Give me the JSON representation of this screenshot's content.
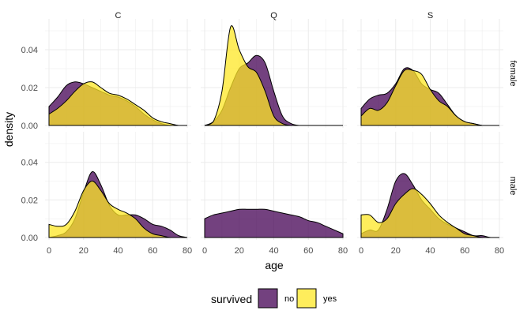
{
  "chart_data": {
    "type": "area",
    "xlabel": "age",
    "ylabel": "density",
    "xlim": [
      0,
      80
    ],
    "ylim": [
      0,
      0.055
    ],
    "x_ticks": [
      0,
      20,
      40,
      60,
      80
    ],
    "y_ticks": [
      0.0,
      0.02,
      0.04
    ],
    "y_tick_labels": [
      "0.00",
      "0.02",
      "0.04"
    ],
    "grid": true,
    "legend": {
      "title": "survived",
      "position": "bottom",
      "entries": [
        "no",
        "yes"
      ]
    },
    "colors": {
      "no": "#440154",
      "yes": "#FDE725",
      "panel_bg": "#ffffff",
      "grid": "#ebebeb",
      "outline": "#000000"
    },
    "fill_opacity": 0.75,
    "facet_cols": [
      "C",
      "Q",
      "S"
    ],
    "facet_rows": [
      "female",
      "male"
    ],
    "panels": [
      {
        "col": "C",
        "row": "female",
        "series": [
          {
            "name": "no",
            "x": [
              0,
              5,
              10,
              15,
              20,
              25,
              30,
              35,
              40,
              45,
              50,
              55,
              60,
              65,
              70,
              75,
              80
            ],
            "y": [
              0.01,
              0.015,
              0.021,
              0.023,
              0.022,
              0.02,
              0.018,
              0.016,
              0.015,
              0.013,
              0.01,
              0.006,
              0.003,
              0.001,
              0.0,
              0.0,
              0.0
            ]
          },
          {
            "name": "yes",
            "x": [
              0,
              5,
              10,
              15,
              20,
              25,
              30,
              35,
              40,
              45,
              50,
              55,
              60,
              65,
              70,
              75,
              80
            ],
            "y": [
              0.006,
              0.009,
              0.013,
              0.018,
              0.022,
              0.023,
              0.02,
              0.017,
              0.016,
              0.014,
              0.011,
              0.008,
              0.004,
              0.002,
              0.001,
              0.0,
              0.0
            ]
          }
        ]
      },
      {
        "col": "Q",
        "row": "female",
        "series": [
          {
            "name": "no",
            "x": [
              0,
              5,
              10,
              15,
              20,
              25,
              30,
              35,
              40,
              45,
              50,
              55,
              60,
              65,
              70,
              75,
              80
            ],
            "y": [
              0.0,
              0.002,
              0.008,
              0.02,
              0.03,
              0.033,
              0.037,
              0.033,
              0.018,
              0.005,
              0.001,
              0.0,
              0.0,
              0.0,
              0.0,
              0.0,
              0.0
            ]
          },
          {
            "name": "yes",
            "x": [
              0,
              5,
              10,
              15,
              20,
              25,
              30,
              35,
              40,
              45,
              50,
              55,
              60,
              65,
              70,
              75,
              80
            ],
            "y": [
              0.0,
              0.002,
              0.018,
              0.052,
              0.04,
              0.031,
              0.028,
              0.018,
              0.005,
              0.001,
              0.0,
              0.0,
              0.0,
              0.0,
              0.0,
              0.0,
              0.0
            ]
          }
        ]
      },
      {
        "col": "S",
        "row": "female",
        "series": [
          {
            "name": "no",
            "x": [
              0,
              5,
              10,
              15,
              20,
              25,
              30,
              35,
              40,
              45,
              50,
              55,
              60,
              65,
              70,
              75,
              80
            ],
            "y": [
              0.009,
              0.014,
              0.016,
              0.017,
              0.022,
              0.03,
              0.029,
              0.022,
              0.019,
              0.017,
              0.011,
              0.005,
              0.002,
              0.001,
              0.0,
              0.0,
              0.0
            ]
          },
          {
            "name": "yes",
            "x": [
              0,
              5,
              10,
              15,
              20,
              25,
              30,
              35,
              40,
              45,
              50,
              55,
              60,
              65,
              70,
              75,
              80
            ],
            "y": [
              0.005,
              0.009,
              0.008,
              0.012,
              0.021,
              0.029,
              0.029,
              0.027,
              0.019,
              0.013,
              0.01,
              0.005,
              0.002,
              0.001,
              0.0,
              0.0,
              0.0
            ]
          }
        ]
      },
      {
        "col": "C",
        "row": "male",
        "series": [
          {
            "name": "no",
            "x": [
              0,
              5,
              10,
              15,
              20,
              25,
              30,
              35,
              40,
              45,
              50,
              55,
              60,
              65,
              70,
              75,
              80
            ],
            "y": [
              0.0,
              0.001,
              0.003,
              0.01,
              0.024,
              0.035,
              0.028,
              0.017,
              0.012,
              0.012,
              0.012,
              0.01,
              0.007,
              0.006,
              0.004,
              0.001,
              0.0
            ]
          },
          {
            "name": "yes",
            "x": [
              0,
              5,
              10,
              15,
              20,
              25,
              30,
              35,
              40,
              45,
              50,
              55,
              60,
              65,
              70,
              75,
              80
            ],
            "y": [
              0.007,
              0.006,
              0.007,
              0.014,
              0.025,
              0.03,
              0.025,
              0.018,
              0.015,
              0.013,
              0.01,
              0.005,
              0.002,
              0.001,
              0.0,
              0.0,
              0.0
            ]
          }
        ]
      },
      {
        "col": "Q",
        "row": "male",
        "series": [
          {
            "name": "no",
            "x": [
              0,
              5,
              10,
              15,
              20,
              25,
              30,
              35,
              40,
              45,
              50,
              55,
              60,
              65,
              70,
              75,
              80
            ],
            "y": [
              0.01,
              0.012,
              0.013,
              0.014,
              0.015,
              0.015,
              0.015,
              0.015,
              0.014,
              0.013,
              0.012,
              0.011,
              0.009,
              0.008,
              0.006,
              0.004,
              0.002
            ]
          }
        ]
      },
      {
        "col": "S",
        "row": "male",
        "series": [
          {
            "name": "no",
            "x": [
              0,
              5,
              10,
              15,
              20,
              25,
              30,
              35,
              40,
              45,
              50,
              55,
              60,
              65,
              70,
              75,
              80
            ],
            "y": [
              0.002,
              0.004,
              0.004,
              0.015,
              0.03,
              0.034,
              0.028,
              0.02,
              0.015,
              0.01,
              0.007,
              0.005,
              0.003,
              0.001,
              0.001,
              0.0,
              0.0
            ]
          },
          {
            "name": "yes",
            "x": [
              0,
              5,
              10,
              15,
              20,
              25,
              30,
              35,
              40,
              45,
              50,
              55,
              60,
              65,
              70,
              75,
              80
            ],
            "y": [
              0.012,
              0.012,
              0.008,
              0.01,
              0.018,
              0.023,
              0.026,
              0.023,
              0.018,
              0.012,
              0.008,
              0.005,
              0.002,
              0.001,
              0.0,
              0.0,
              0.0
            ]
          }
        ]
      }
    ]
  }
}
